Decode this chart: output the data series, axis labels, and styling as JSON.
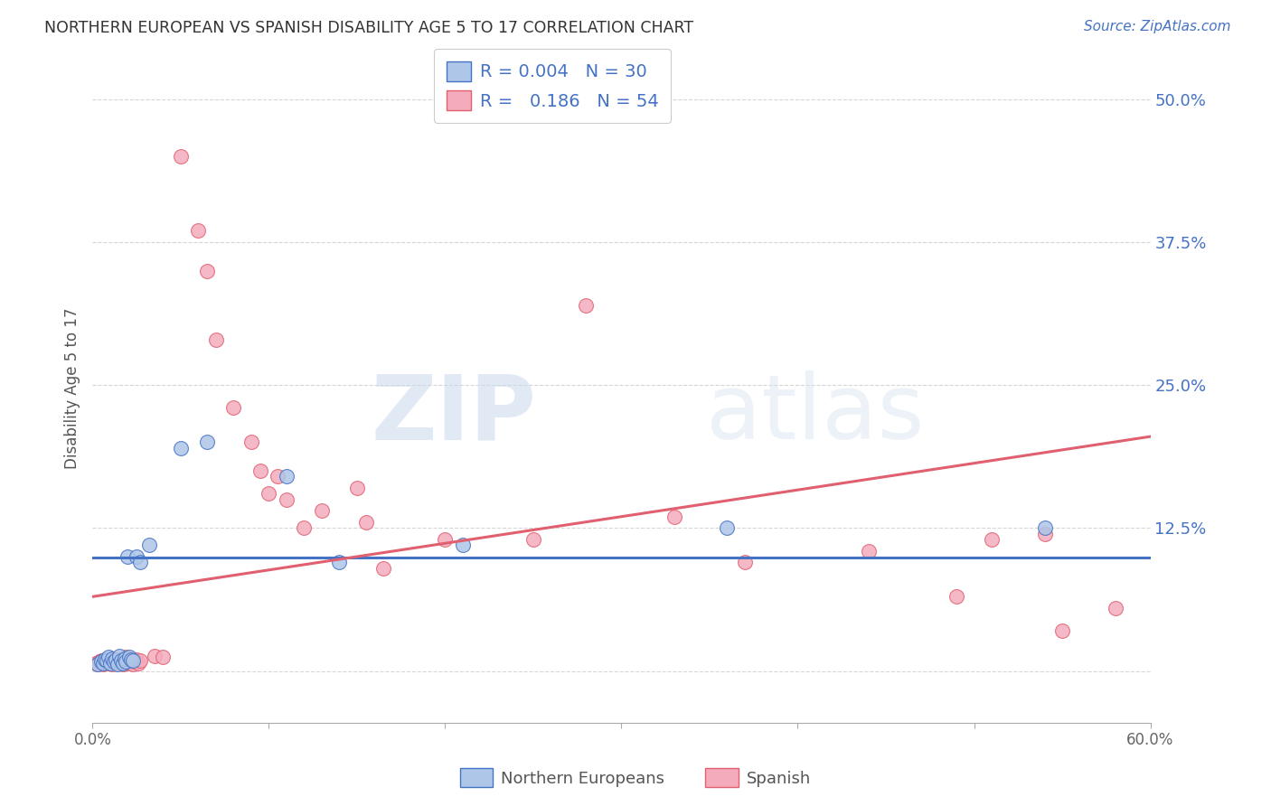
{
  "title": "NORTHERN EUROPEAN VS SPANISH DISABILITY AGE 5 TO 17 CORRELATION CHART",
  "source": "Source: ZipAtlas.com",
  "ylabel": "Disability Age 5 to 17",
  "xlim": [
    0.0,
    0.6
  ],
  "ylim": [
    -0.045,
    0.54
  ],
  "xticks": [
    0.0,
    0.1,
    0.2,
    0.3,
    0.4,
    0.5,
    0.6
  ],
  "xticklabels": [
    "0.0%",
    "",
    "",
    "",
    "",
    "",
    "60.0%"
  ],
  "yticks": [
    0.0,
    0.125,
    0.25,
    0.375,
    0.5
  ],
  "yticklabels_right": [
    "",
    "12.5%",
    "25.0%",
    "37.5%",
    "50.0%"
  ],
  "blue_R": "0.004",
  "blue_N": "30",
  "pink_R": "0.186",
  "pink_N": "54",
  "blue_fill": "#AEC6E8",
  "blue_edge": "#4472C4",
  "pink_fill": "#F4ACBD",
  "pink_edge": "#E06070",
  "blue_line": "#4472C4",
  "pink_line": "#E06070",
  "legend_label_blue": "Northern Europeans",
  "legend_label_pink": "Spanish",
  "watermark": "ZIPatlas",
  "bg": "#FFFFFF",
  "grid_color": "#CCCCCC",
  "blue_line_y0": 0.099,
  "blue_line_y1": 0.099,
  "pink_line_y0": 0.065,
  "pink_line_y1": 0.205,
  "blue_x": [
    0.003,
    0.005,
    0.006,
    0.007,
    0.008,
    0.009,
    0.01,
    0.011,
    0.012,
    0.013,
    0.014,
    0.015,
    0.016,
    0.017,
    0.018,
    0.019,
    0.02,
    0.021,
    0.022,
    0.023,
    0.025,
    0.027,
    0.032,
    0.05,
    0.065,
    0.11,
    0.14,
    0.21,
    0.36,
    0.54
  ],
  "blue_y": [
    0.006,
    0.008,
    0.007,
    0.01,
    0.009,
    0.012,
    0.007,
    0.011,
    0.008,
    0.01,
    0.006,
    0.013,
    0.009,
    0.007,
    0.011,
    0.008,
    0.1,
    0.012,
    0.01,
    0.009,
    0.1,
    0.095,
    0.11,
    0.195,
    0.2,
    0.17,
    0.095,
    0.11,
    0.125,
    0.125
  ],
  "pink_x": [
    0.002,
    0.003,
    0.004,
    0.005,
    0.006,
    0.007,
    0.008,
    0.009,
    0.01,
    0.011,
    0.012,
    0.013,
    0.014,
    0.015,
    0.016,
    0.017,
    0.018,
    0.019,
    0.02,
    0.021,
    0.022,
    0.023,
    0.024,
    0.025,
    0.026,
    0.027,
    0.035,
    0.04,
    0.05,
    0.06,
    0.065,
    0.07,
    0.08,
    0.09,
    0.095,
    0.1,
    0.105,
    0.11,
    0.12,
    0.13,
    0.15,
    0.155,
    0.165,
    0.2,
    0.25,
    0.28,
    0.33,
    0.37,
    0.44,
    0.49,
    0.51,
    0.54,
    0.55,
    0.58
  ],
  "pink_y": [
    0.007,
    0.006,
    0.008,
    0.009,
    0.006,
    0.01,
    0.007,
    0.008,
    0.009,
    0.006,
    0.011,
    0.008,
    0.007,
    0.01,
    0.009,
    0.006,
    0.008,
    0.012,
    0.007,
    0.009,
    0.011,
    0.006,
    0.008,
    0.01,
    0.007,
    0.009,
    0.013,
    0.012,
    0.45,
    0.385,
    0.35,
    0.29,
    0.23,
    0.2,
    0.175,
    0.155,
    0.17,
    0.15,
    0.125,
    0.14,
    0.16,
    0.13,
    0.09,
    0.115,
    0.115,
    0.32,
    0.135,
    0.095,
    0.105,
    0.065,
    0.115,
    0.12,
    0.035,
    0.055
  ]
}
